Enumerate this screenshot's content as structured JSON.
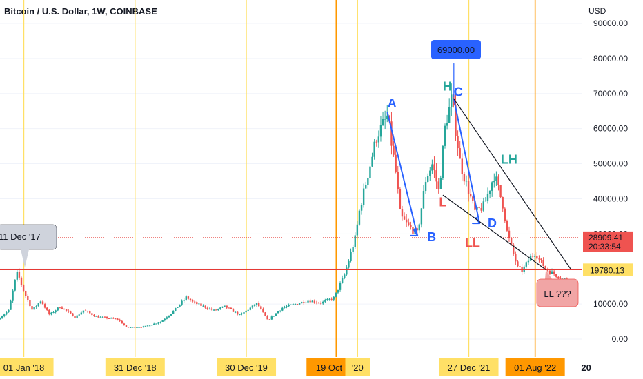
{
  "title": "Bitcoin / U.S. Dollar, 1W, COINBASE",
  "colors": {
    "up": "#26a69a",
    "down": "#ef5350",
    "yellow_line": "#ffe066",
    "orange_line": "#ff9800",
    "blue": "#2962ff",
    "teal": "#26a69a",
    "red": "#ef5350",
    "support": "#e53935",
    "grid": "#f0f3fa"
  },
  "chart_data": {
    "type": "candlestick",
    "title": "Bitcoin / U.S. Dollar, 1W, COINBASE",
    "y_unit": "USD",
    "y_axis": {
      "ylim": [
        0,
        94000
      ],
      "ticks": [
        "90000.00",
        "80000.00",
        "70000.00",
        "60000.00",
        "50000.00",
        "40000.00",
        "30000.00",
        "20000.00",
        "10000.00",
        "0.00"
      ],
      "tick_values": [
        90000,
        80000,
        70000,
        60000,
        50000,
        40000,
        30000,
        20000,
        10000,
        0
      ]
    },
    "x_axis": {
      "date_range": [
        "2017-10-15",
        "2022-12-31"
      ],
      "visible_labels": [
        {
          "label": "01 Jan '18",
          "date": "2018-01-01",
          "highlight": "yellow"
        },
        {
          "label": "31 Dec '18",
          "date": "2018-12-31",
          "highlight": "yellow"
        },
        {
          "label": "30 Dec '19",
          "date": "2019-12-30",
          "highlight": "yellow"
        },
        {
          "label": "19 Oct '20",
          "date": "2020-10-19",
          "highlight": "orange"
        },
        {
          "label": "'20",
          "date": "2020-12-28",
          "highlight": "yellow"
        },
        {
          "label": "27 Dec '21",
          "date": "2021-12-27",
          "highlight": "yellow"
        },
        {
          "label": "01 Aug '22",
          "date": "2022-08-01",
          "highlight": "orange"
        },
        {
          "label": "20",
          "date": "2023-01-15",
          "highlight": "none"
        }
      ]
    },
    "vertical_lines": [
      {
        "date": "2018-01-01",
        "color": "yellow"
      },
      {
        "date": "2018-12-31",
        "color": "yellow"
      },
      {
        "date": "2019-12-30",
        "color": "yellow"
      },
      {
        "date": "2020-10-19",
        "color": "orange"
      },
      {
        "date": "2020-12-28",
        "color": "yellow"
      },
      {
        "date": "2021-12-27",
        "color": "yellow"
      },
      {
        "date": "2022-08-01",
        "color": "orange"
      }
    ],
    "price_series": [
      [
        "2017-10-15",
        5600
      ],
      [
        "2017-11-20",
        8200
      ],
      [
        "2017-12-11",
        17000
      ],
      [
        "2017-12-18",
        19000
      ],
      [
        "2018-01-08",
        13500
      ],
      [
        "2018-02-05",
        8200
      ],
      [
        "2018-03-05",
        11000
      ],
      [
        "2018-04-02",
        6900
      ],
      [
        "2018-05-07",
        9300
      ],
      [
        "2018-06-25",
        6200
      ],
      [
        "2018-07-23",
        8200
      ],
      [
        "2018-09-03",
        6400
      ],
      [
        "2018-11-12",
        5600
      ],
      [
        "2018-12-10",
        3300
      ],
      [
        "2019-02-04",
        3500
      ],
      [
        "2019-04-01",
        4900
      ],
      [
        "2019-05-13",
        8000
      ],
      [
        "2019-06-24",
        12000
      ],
      [
        "2019-07-15",
        10500
      ],
      [
        "2019-09-23",
        8100
      ],
      [
        "2019-10-28",
        9300
      ],
      [
        "2019-12-16",
        6800
      ],
      [
        "2020-02-10",
        10200
      ],
      [
        "2020-03-16",
        5300
      ],
      [
        "2020-05-04",
        9000
      ],
      [
        "2020-07-27",
        11000
      ],
      [
        "2020-09-07",
        10300
      ],
      [
        "2020-10-19",
        11800
      ],
      [
        "2020-11-23",
        18500
      ],
      [
        "2020-12-28",
        29000
      ],
      [
        "2021-01-11",
        37000
      ],
      [
        "2021-02-15",
        50000
      ],
      [
        "2021-03-08",
        58000
      ],
      [
        "2021-04-12",
        63500
      ],
      [
        "2021-05-10",
        47000
      ],
      [
        "2021-05-24",
        35000
      ],
      [
        "2021-06-21",
        32000
      ],
      [
        "2021-07-19",
        30000
      ],
      [
        "2021-08-16",
        46000
      ],
      [
        "2021-09-06",
        50000
      ],
      [
        "2021-09-27",
        42000
      ],
      [
        "2021-10-18",
        61000
      ],
      [
        "2021-11-08",
        68500
      ],
      [
        "2021-12-06",
        50000
      ],
      [
        "2022-01-03",
        42000
      ],
      [
        "2022-01-24",
        36000
      ],
      [
        "2022-02-21",
        38000
      ],
      [
        "2022-03-28",
        47000
      ],
      [
        "2022-04-25",
        38000
      ],
      [
        "2022-05-09",
        30000
      ],
      [
        "2022-06-13",
        20000
      ],
      [
        "2022-06-27",
        19500
      ],
      [
        "2022-07-25",
        23500
      ],
      [
        "2022-08-08",
        24500
      ],
      [
        "2022-09-12",
        20000
      ],
      [
        "2022-11-07",
        17000
      ]
    ],
    "horizontal_levels": [
      {
        "price": 19780.13,
        "label": "19780.13",
        "style": "solid",
        "color": "red"
      },
      {
        "price": 28909.41,
        "label": "28909.41",
        "style": "dotted",
        "color": "red"
      }
    ],
    "current_price": {
      "value": "28909.41",
      "countdown": "20:33:54"
    },
    "annotations": {
      "callout_left": "11 Dec '17",
      "callout_high": "69000.00",
      "callout_ll": "LL ???",
      "labels": [
        "A",
        "B",
        "H",
        "C",
        "D",
        "L",
        "LL",
        "LH"
      ]
    }
  }
}
